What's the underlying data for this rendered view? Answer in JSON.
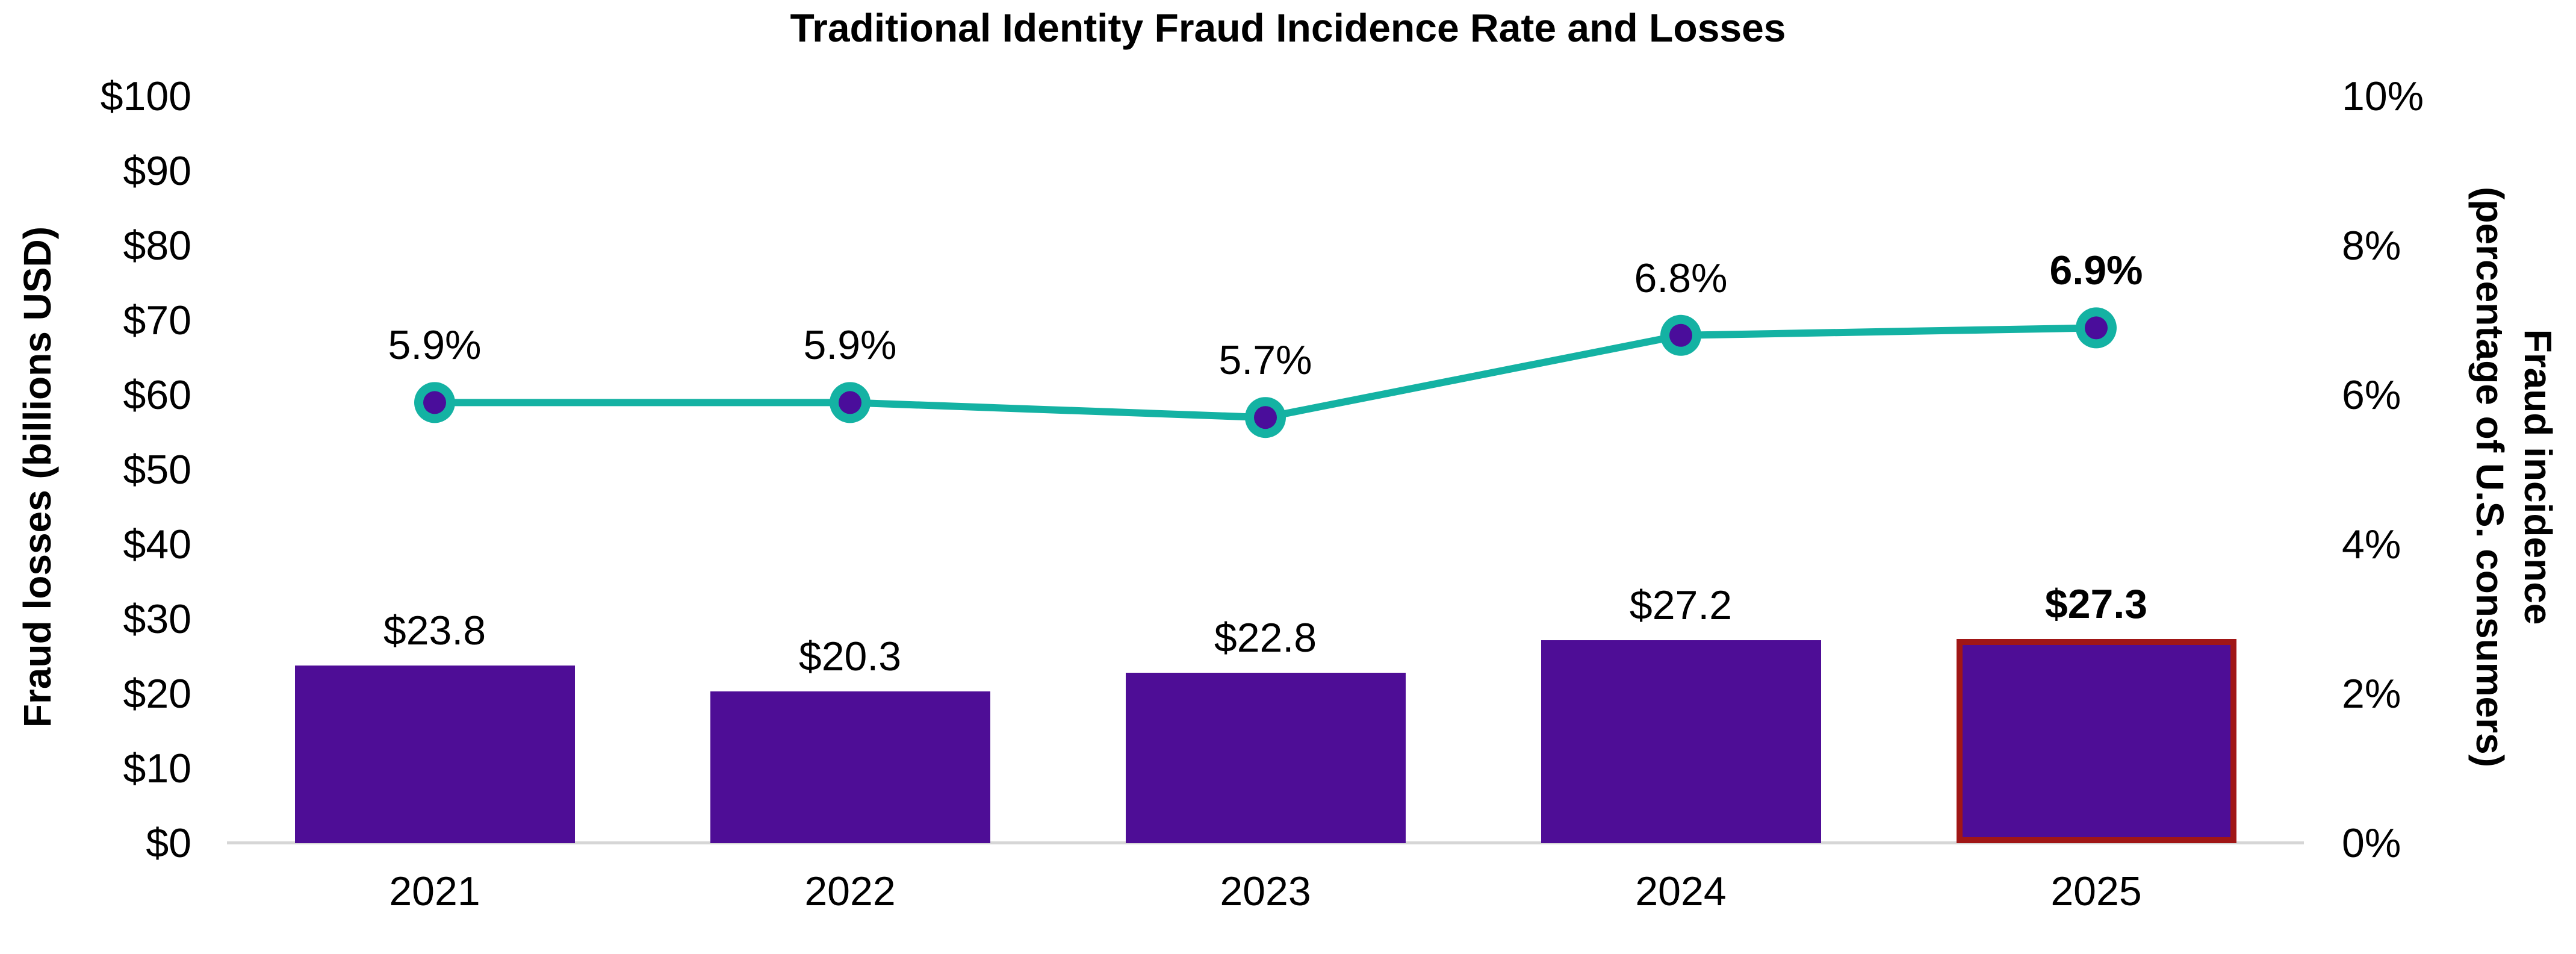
{
  "chart_data": {
    "type": "bar+line",
    "title": "Traditional Identity Fraud Incidence Rate and Losses",
    "categories": [
      "2021",
      "2022",
      "2023",
      "2024",
      "2025"
    ],
    "series": [
      {
        "name": "Fraud losses",
        "type": "bar",
        "axis": "left",
        "values": [
          23.8,
          20.3,
          22.8,
          27.2,
          27.3
        ],
        "data_labels": [
          "$23.8",
          "$20.3",
          "$22.8",
          "$27.2",
          "$27.3"
        ],
        "color": "#4E0D96"
      },
      {
        "name": "Fraud incidence",
        "type": "line",
        "axis": "right",
        "values": [
          5.9,
          5.9,
          5.7,
          6.8,
          6.9
        ],
        "data_labels": [
          "5.9%",
          "5.9%",
          "5.7%",
          "6.8%",
          "6.9%"
        ],
        "line_color": "#14B2A3",
        "marker_ring_color": "#14B2A3",
        "marker_fill_color": "#4A0D9B"
      }
    ],
    "highlight_index": 4,
    "highlight_border_color": "#A01616",
    "left_axis": {
      "title": "Fraud losses (billions USD)",
      "range": [
        0,
        100
      ],
      "ticks": [
        {
          "value": 0,
          "label": "$0"
        },
        {
          "value": 10,
          "label": "$10"
        },
        {
          "value": 20,
          "label": "$20"
        },
        {
          "value": 30,
          "label": "$30"
        },
        {
          "value": 40,
          "label": "$40"
        },
        {
          "value": 50,
          "label": "$50"
        },
        {
          "value": 60,
          "label": "$60"
        },
        {
          "value": 70,
          "label": "$70"
        },
        {
          "value": 80,
          "label": "$80"
        },
        {
          "value": 90,
          "label": "$90"
        },
        {
          "value": 100,
          "label": "$100"
        }
      ]
    },
    "right_axis": {
      "title_lines": [
        "Fraud incidence",
        "(percentage of U.S. consumers)"
      ],
      "range": [
        0,
        10
      ],
      "ticks": [
        {
          "value": 0,
          "label": "0%"
        },
        {
          "value": 2,
          "label": "2%"
        },
        {
          "value": 4,
          "label": "4%"
        },
        {
          "value": 6,
          "label": "6%"
        },
        {
          "value": 8,
          "label": "8%"
        },
        {
          "value": 10,
          "label": "10%"
        }
      ]
    },
    "grid": false,
    "legend": "none",
    "baseline_color": "#D6D6D6",
    "background_color": "#FFFFFF",
    "text_color": "#000000"
  }
}
